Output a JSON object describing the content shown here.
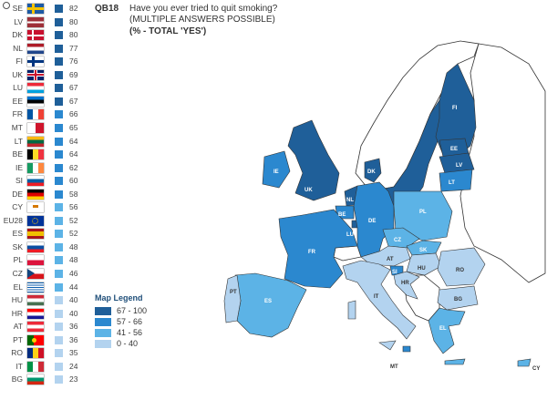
{
  "header": {
    "question_id": "QB18",
    "question": "Have you ever tried to quit smoking?",
    "note": "(MULTIPLE ANSWERS POSSIBLE)",
    "unit": "(% - TOTAL 'YES')"
  },
  "legend": {
    "title": "Map Legend",
    "items": [
      {
        "label": "67 - 100",
        "color": "#1f5f99"
      },
      {
        "label": "57 - 66",
        "color": "#2b88cf"
      },
      {
        "label": "41 - 56",
        "color": "#5cb3e6"
      },
      {
        "label": "0 - 40",
        "color": "#b3d3ef"
      }
    ]
  },
  "ranking": [
    {
      "code": "SE",
      "value": "82"
    },
    {
      "code": "LV",
      "value": "80"
    },
    {
      "code": "DK",
      "value": "80"
    },
    {
      "code": "NL",
      "value": "77"
    },
    {
      "code": "FI",
      "value": "76"
    },
    {
      "code": "UK",
      "value": "69"
    },
    {
      "code": "LU",
      "value": "67"
    },
    {
      "code": "EE",
      "value": "67"
    },
    {
      "code": "FR",
      "value": "66"
    },
    {
      "code": "MT",
      "value": "65"
    },
    {
      "code": "LT",
      "value": "64"
    },
    {
      "code": "BE",
      "value": "64"
    },
    {
      "code": "IE",
      "value": "62"
    },
    {
      "code": "SI",
      "value": "60"
    },
    {
      "code": "DE",
      "value": "58"
    },
    {
      "code": "CY",
      "value": "56"
    },
    {
      "code": "EU28",
      "value": "52"
    },
    {
      "code": "ES",
      "value": "52"
    },
    {
      "code": "SK",
      "value": "48"
    },
    {
      "code": "PL",
      "value": "48"
    },
    {
      "code": "CZ",
      "value": "46"
    },
    {
      "code": "EL",
      "value": "44"
    },
    {
      "code": "HU",
      "value": "40"
    },
    {
      "code": "HR",
      "value": "40"
    },
    {
      "code": "AT",
      "value": "36"
    },
    {
      "code": "PT",
      "value": "36"
    },
    {
      "code": "RO",
      "value": "35"
    },
    {
      "code": "IT",
      "value": "24"
    },
    {
      "code": "BG",
      "value": "23"
    }
  ],
  "map_labels": {
    "IE": "IE",
    "UK": "UK",
    "FR": "FR",
    "ES": "ES",
    "PT": "PT",
    "BE": "BE",
    "NL": "NL",
    "LU": "LU",
    "DE": "DE",
    "DK": "DK",
    "SE": "SE",
    "FI": "FI",
    "EE": "EE",
    "LV": "LV",
    "LT": "LT",
    "PL": "PL",
    "CZ": "CZ",
    "SK": "SK",
    "AT": "AT",
    "HU": "HU",
    "SI": "SI",
    "HR": "HR",
    "RO": "RO",
    "BG": "BG",
    "IT": "IT",
    "EL": "EL",
    "MT": "MT",
    "CY": "CY"
  }
}
